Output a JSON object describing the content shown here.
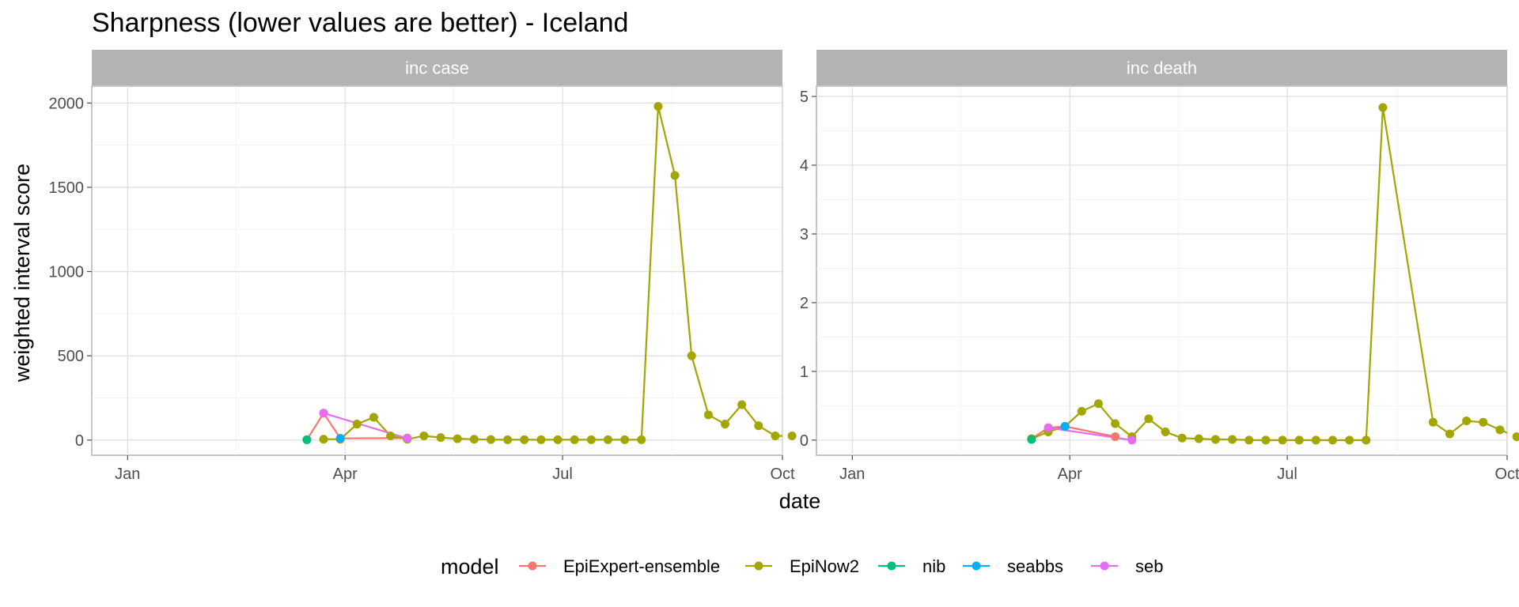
{
  "chart_data": {
    "type": "line",
    "title": "Sharpness (lower values are better) - Iceland",
    "xlabel": "date",
    "ylabel": "weighted interval score",
    "legend_title": "model",
    "legend_position": "bottom",
    "grid": true,
    "x_ticks": [
      "Jan",
      "Apr",
      "Jul",
      "Oct"
    ],
    "x_tick_dates": [
      "2020-01-01",
      "2020-04-01",
      "2020-07-01",
      "2020-10-01"
    ],
    "xlim": [
      "2019-12-17",
      "2020-10-01"
    ],
    "colors": {
      "EpiExpert-ensemble": "#F8766D",
      "EpiNow2": "#A3A500",
      "nib": "#00BF7D",
      "seabbs": "#00B0F6",
      "seb": "#E76BF3"
    },
    "series_order": [
      "EpiExpert-ensemble",
      "EpiNow2",
      "nib",
      "seabbs",
      "seb"
    ],
    "panels": [
      {
        "label": "inc case",
        "ylim": [
          -90,
          2100
        ],
        "y_ticks": [
          0,
          500,
          1000,
          1500,
          2000
        ],
        "series": [
          {
            "name": "EpiExpert-ensemble",
            "points": [
              [
                "2020-03-16",
                2
              ],
              [
                "2020-03-23",
                160
              ],
              [
                "2020-03-30",
                10
              ],
              [
                "2020-04-27",
                12
              ]
            ]
          },
          {
            "name": "EpiNow2",
            "points": [
              [
                "2020-03-23",
                5
              ],
              [
                "2020-03-30",
                5
              ],
              [
                "2020-04-06",
                95
              ],
              [
                "2020-04-13",
                135
              ],
              [
                "2020-04-20",
                25
              ],
              [
                "2020-04-27",
                5
              ],
              [
                "2020-05-04",
                25
              ],
              [
                "2020-05-11",
                15
              ],
              [
                "2020-05-18",
                8
              ],
              [
                "2020-05-25",
                5
              ],
              [
                "2020-06-01",
                3
              ],
              [
                "2020-06-08",
                2
              ],
              [
                "2020-06-15",
                2
              ],
              [
                "2020-06-22",
                2
              ],
              [
                "2020-06-29",
                2
              ],
              [
                "2020-07-06",
                2
              ],
              [
                "2020-07-13",
                2
              ],
              [
                "2020-07-20",
                2
              ],
              [
                "2020-07-27",
                2
              ],
              [
                "2020-08-03",
                2
              ],
              [
                "2020-08-10",
                1980
              ],
              [
                "2020-08-17",
                1570
              ],
              [
                "2020-08-24",
                500
              ],
              [
                "2020-08-31",
                150
              ],
              [
                "2020-09-07",
                95
              ],
              [
                "2020-09-14",
                210
              ],
              [
                "2020-09-21",
                85
              ],
              [
                "2020-09-28",
                25
              ],
              [
                "2020-10-05",
                25
              ]
            ]
          },
          {
            "name": "nib",
            "points": [
              [
                "2020-03-16",
                2
              ]
            ]
          },
          {
            "name": "seabbs",
            "points": [
              [
                "2020-03-30",
                10
              ]
            ]
          },
          {
            "name": "seb",
            "points": [
              [
                "2020-03-23",
                160
              ],
              [
                "2020-04-27",
                10
              ]
            ]
          }
        ]
      },
      {
        "label": "inc death",
        "ylim": [
          -0.22,
          5.15
        ],
        "y_ticks": [
          0,
          1,
          2,
          3,
          4,
          5
        ],
        "series": [
          {
            "name": "EpiExpert-ensemble",
            "points": [
              [
                "2020-03-16",
                0.02
              ],
              [
                "2020-03-23",
                0.18
              ],
              [
                "2020-03-30",
                0.2
              ],
              [
                "2020-04-20",
                0.05
              ]
            ]
          },
          {
            "name": "EpiNow2",
            "points": [
              [
                "2020-03-16",
                0.02
              ],
              [
                "2020-03-23",
                0.12
              ],
              [
                "2020-03-30",
                0.2
              ],
              [
                "2020-04-06",
                0.42
              ],
              [
                "2020-04-13",
                0.53
              ],
              [
                "2020-04-20",
                0.24
              ],
              [
                "2020-04-27",
                0.05
              ],
              [
                "2020-05-04",
                0.31
              ],
              [
                "2020-05-11",
                0.12
              ],
              [
                "2020-05-18",
                0.03
              ],
              [
                "2020-05-25",
                0.02
              ],
              [
                "2020-06-01",
                0.01
              ],
              [
                "2020-06-08",
                0.01
              ],
              [
                "2020-06-15",
                0.0
              ],
              [
                "2020-06-22",
                0.0
              ],
              [
                "2020-06-29",
                0.0
              ],
              [
                "2020-07-06",
                0.0
              ],
              [
                "2020-07-13",
                0.0
              ],
              [
                "2020-07-20",
                0.0
              ],
              [
                "2020-07-27",
                0.0
              ],
              [
                "2020-08-03",
                0.0
              ],
              [
                "2020-08-10",
                4.84
              ],
              [
                "2020-08-31",
                0.26
              ],
              [
                "2020-09-07",
                0.09
              ],
              [
                "2020-09-14",
                0.28
              ],
              [
                "2020-09-21",
                0.26
              ],
              [
                "2020-09-28",
                0.15
              ],
              [
                "2020-10-05",
                0.05
              ]
            ]
          },
          {
            "name": "nib",
            "points": [
              [
                "2020-03-16",
                0.01
              ]
            ]
          },
          {
            "name": "seabbs",
            "points": [
              [
                "2020-03-30",
                0.2
              ]
            ]
          },
          {
            "name": "seb",
            "points": [
              [
                "2020-03-23",
                0.18
              ],
              [
                "2020-04-27",
                0.0
              ]
            ]
          }
        ]
      }
    ]
  }
}
